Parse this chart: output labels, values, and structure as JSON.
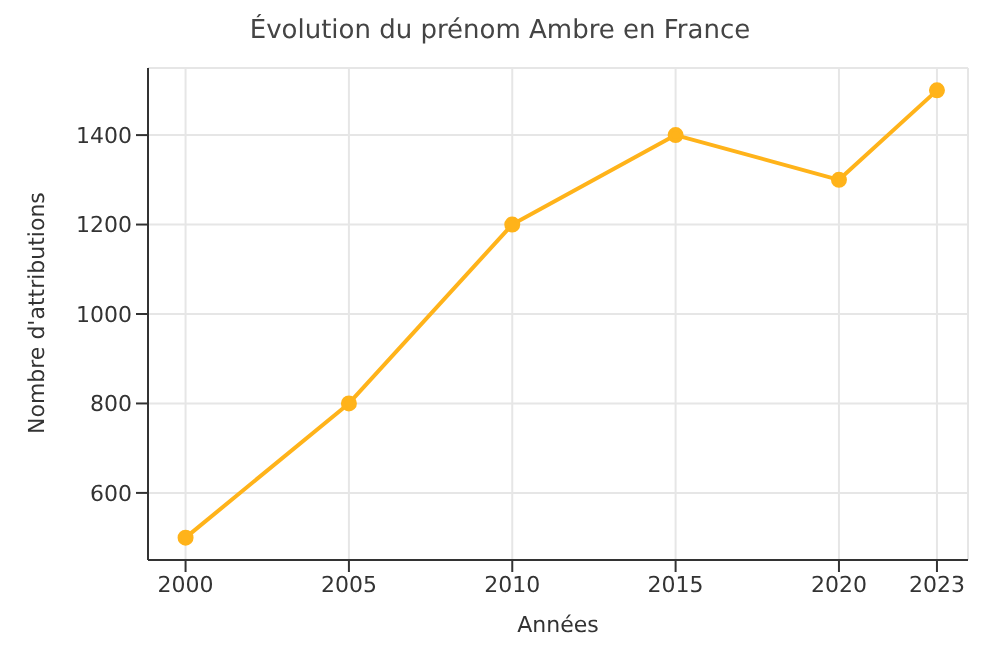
{
  "chart_data": {
    "type": "line",
    "title": "Évolution du prénom Ambre en France",
    "xlabel": "Années",
    "ylabel": "Nombre d'attributions",
    "x": [
      2000,
      2005,
      2010,
      2015,
      2020,
      2023
    ],
    "series": [
      {
        "color": "#ffb31a",
        "values": [
          500,
          800,
          1200,
          1400,
          1300,
          1500
        ]
      }
    ],
    "xlim": [
      1998.85,
      2023.95
    ],
    "xticks": [
      2000,
      2005,
      2010,
      2015,
      2020,
      2023
    ],
    "ylim": [
      450,
      1550
    ],
    "yticks": [
      600,
      800,
      1000,
      1200,
      1400
    ],
    "grid": true,
    "marker": "circle",
    "line_style": "solid",
    "legend": false
  }
}
